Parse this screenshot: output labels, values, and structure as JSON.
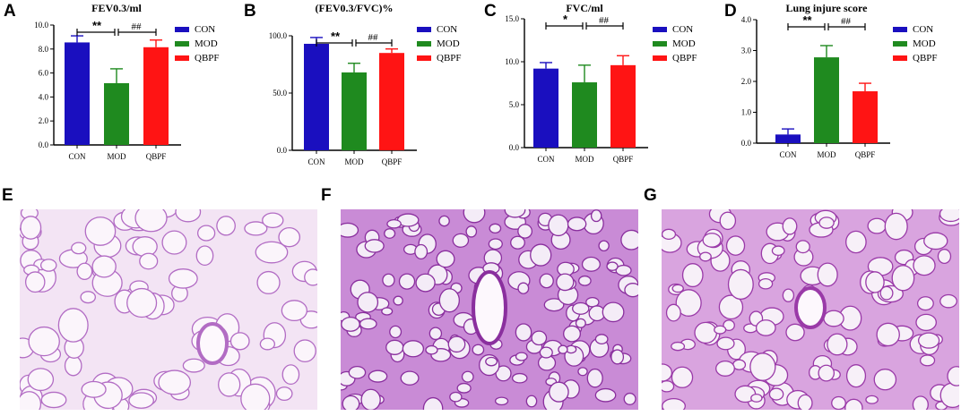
{
  "colors": {
    "CON": "#1a0fbf",
    "MOD": "#1f8a1f",
    "QBPF": "#ff1414"
  },
  "legend": [
    "CON",
    "MOD",
    "QBPF"
  ],
  "chart_data": [
    {
      "panel": "A",
      "type": "bar",
      "title": "FEV0.3/ml",
      "categories": [
        "CON",
        "MOD",
        "QBPF"
      ],
      "values": [
        8.55,
        5.15,
        8.15
      ],
      "errors": [
        0.55,
        1.2,
        0.6
      ],
      "ylim": [
        0,
        10
      ],
      "yticks": [
        "0.0",
        "2.0",
        "4.0",
        "6.0",
        "8.0",
        "10.0"
      ],
      "sig_left": "**",
      "sig_right": "##"
    },
    {
      "panel": "B",
      "type": "bar",
      "title": "(FEV0.3/FVC)%",
      "categories": [
        "CON",
        "MOD",
        "QBPF"
      ],
      "values": [
        93,
        68,
        85
      ],
      "errors": [
        5.5,
        8,
        3.5
      ],
      "ylim": [
        0,
        100
      ],
      "yticks": [
        "0.0",
        "50.0",
        "100.0"
      ],
      "sig_left": "**",
      "sig_right": "##"
    },
    {
      "panel": "C",
      "type": "bar",
      "title": "FVC/ml",
      "categories": [
        "CON",
        "MOD",
        "QBPF"
      ],
      "values": [
        9.2,
        7.6,
        9.6
      ],
      "errors": [
        0.7,
        2.0,
        1.1
      ],
      "ylim": [
        0,
        15
      ],
      "yticks": [
        "0.0",
        "5.0",
        "10.0",
        "15.0"
      ],
      "sig_left": "*",
      "sig_right": "##"
    },
    {
      "panel": "D",
      "type": "bar",
      "title": "Lung injure score",
      "categories": [
        "CON",
        "MOD",
        "QBPF"
      ],
      "values": [
        0.28,
        2.78,
        1.68
      ],
      "errors": [
        0.18,
        0.38,
        0.26
      ],
      "ylim": [
        0,
        4
      ],
      "yticks": [
        "0.0",
        "1.0",
        "2.0",
        "3.0",
        "4.0"
      ],
      "sig_left": "**",
      "sig_right": "##"
    }
  ],
  "micrographs": [
    {
      "panel": "E",
      "density": "low"
    },
    {
      "panel": "F",
      "density": "high"
    },
    {
      "panel": "G",
      "density": "medium"
    }
  ]
}
